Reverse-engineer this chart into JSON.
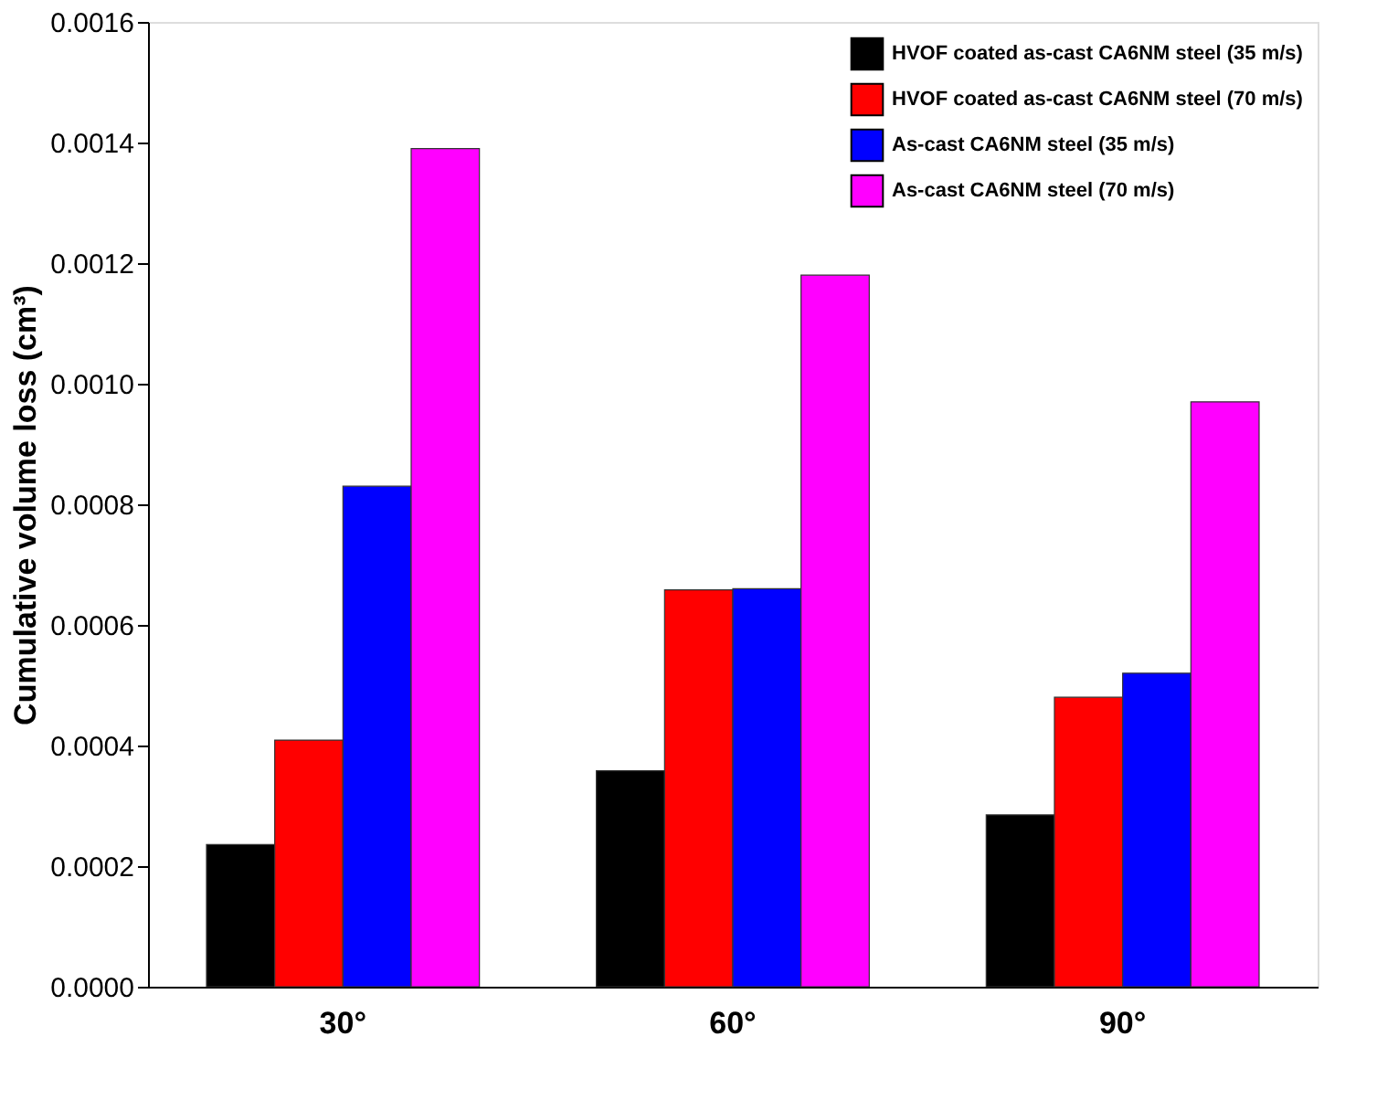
{
  "chart_data": {
    "type": "bar",
    "categories": [
      "30°",
      "60°",
      "90°"
    ],
    "ylabel": "Cumulative volume loss (cm³)",
    "series": [
      {
        "name": "HVOF coated as-cast CA6NM steel (35 m/s)",
        "color": "#000000",
        "values": [
          0.000236,
          0.000358,
          0.000285
        ]
      },
      {
        "name": "HVOF coated as-cast CA6NM steel (70 m/s)",
        "color": "#ff0000",
        "values": [
          0.000409,
          0.000658,
          0.00048
        ]
      },
      {
        "name": "As-cast CA6NM steel (35 m/s)",
        "color": "#0000ff",
        "values": [
          0.00083,
          0.00066,
          0.00052
        ]
      },
      {
        "name": "As-cast CA6NM steel (70 m/s)",
        "color": "#ff00ff",
        "values": [
          0.00139,
          0.00118,
          0.00097
        ]
      }
    ],
    "ylim": [
      0,
      0.0016
    ],
    "yticks": [
      {
        "value": 0,
        "label": "0.0000"
      },
      0.0002,
      0.0004,
      0.0006,
      0.0008,
      {
        "value": 0.001,
        "label": "0.0010"
      },
      0.0012,
      0.0014,
      0.0016
    ],
    "grid": false,
    "legend": "top right"
  }
}
